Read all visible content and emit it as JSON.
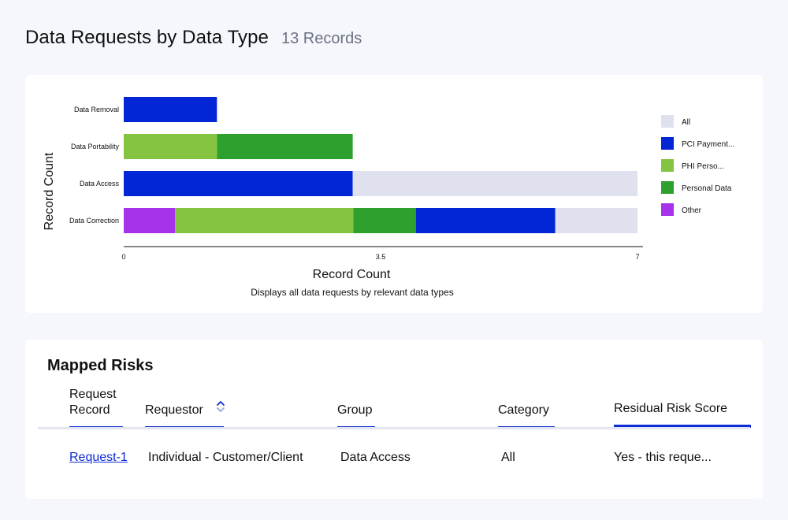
{
  "header": {
    "title": "Data Requests by Data Type",
    "record_count": "13 Records"
  },
  "chart_data": {
    "type": "bar",
    "orientation": "horizontal",
    "stacked": true,
    "title": "",
    "xlabel": "Record Count",
    "ylabel": "Record Count",
    "caption": "Displays all data requests by relevant data types",
    "xlim": [
      0,
      7
    ],
    "xticks": [
      "0",
      "3.5",
      "7"
    ],
    "categories": [
      "Data Removal",
      "Data Portability",
      "Data Access",
      "Data Correction"
    ],
    "series": [
      {
        "name": "Other",
        "color": "#a632ea",
        "values": [
          0,
          0,
          0,
          0.7
        ]
      },
      {
        "name": "PHI Perso...",
        "color": "#84c441",
        "values": [
          0,
          1.27,
          0,
          2.43
        ]
      },
      {
        "name": "Personal Data",
        "color": "#2ea02e",
        "values": [
          0,
          1.85,
          0,
          0.85
        ]
      },
      {
        "name": "PCI Payment...",
        "color": "#0225d6",
        "values": [
          1.27,
          0,
          3.12,
          1.9
        ]
      },
      {
        "name": "All",
        "color": "#dfe1ee",
        "values": [
          0,
          0,
          3.88,
          1.12
        ]
      }
    ],
    "legend": {
      "placement": "right",
      "order": [
        "All",
        "PCI Payment...",
        "PHI Perso...",
        "Personal Data",
        "Other"
      ]
    },
    "grid": false
  },
  "risks": {
    "title": "Mapped Risks",
    "columns": {
      "request_record": "Request\nRecord",
      "requestor": "Requestor",
      "group": "Group",
      "category": "Category",
      "residual_risk": "Residual Risk Score"
    },
    "rows": [
      {
        "request_record": "Request-1",
        "requestor": "Individual - Customer/Client",
        "group": "Data Access",
        "category": "All",
        "residual_risk": "Yes - this reque..."
      }
    ]
  }
}
